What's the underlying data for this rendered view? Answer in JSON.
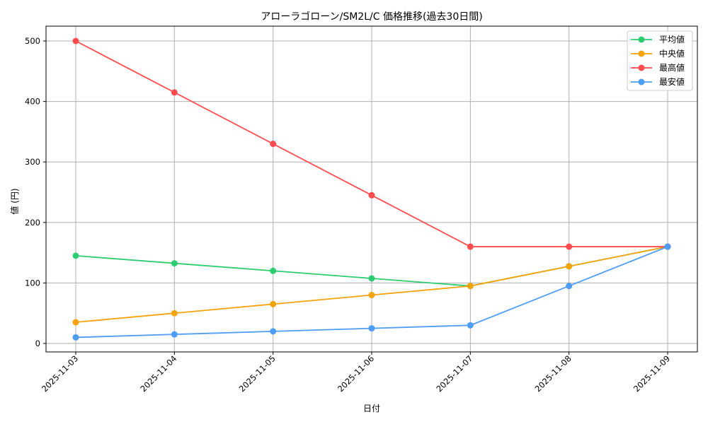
{
  "chart_data": {
    "type": "line",
    "title": "アローラゴローン/SM2L/C 価格推移(過去30日間)",
    "xlabel": "日付",
    "ylabel": "値 (円)",
    "categories": [
      "2025-11-03",
      "2025-11-04",
      "2025-11-05",
      "2025-11-06",
      "2025-11-07",
      "2025-11-08",
      "2025-11-09"
    ],
    "ylim": [
      -14,
      524
    ],
    "yticks": [
      0,
      100,
      200,
      300,
      400,
      500
    ],
    "grid": true,
    "legend_position": "upper right",
    "x_tick_rotation": 45,
    "series": [
      {
        "name": "平均値",
        "color": "#2ecc71",
        "values": [
          145,
          132.5,
          120,
          107.5,
          95,
          127.5,
          160
        ]
      },
      {
        "name": "中央値",
        "color": "#f5a30a",
        "values": [
          35,
          50,
          65,
          80,
          95,
          127.5,
          160
        ]
      },
      {
        "name": "最高値",
        "color": "#ff4d4f",
        "values": [
          500,
          415,
          330,
          245,
          160,
          160,
          160
        ]
      },
      {
        "name": "最安値",
        "color": "#4d9cf5",
        "values": [
          10,
          15,
          20,
          25,
          30,
          95,
          160
        ]
      }
    ]
  },
  "ytick_labels": [
    "0",
    "100",
    "200",
    "300",
    "400",
    "500"
  ],
  "legend": {
    "items": [
      {
        "label": "平均値"
      },
      {
        "label": "中央値"
      },
      {
        "label": "最高値"
      },
      {
        "label": "最安値"
      }
    ]
  }
}
